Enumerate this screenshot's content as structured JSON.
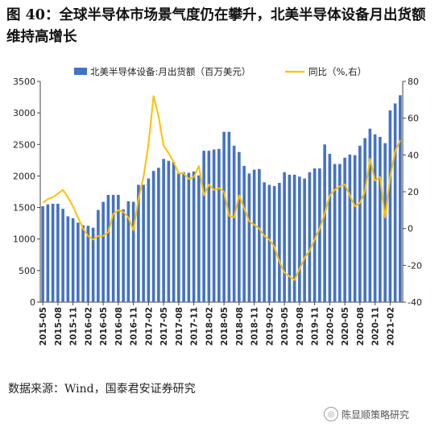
{
  "figure": {
    "title": "图 40：全球半导体市场景气度仍在攀升，北美半导体设备月出货额维持高增长",
    "source": "数据来源：Wind，国泰君安证券研究",
    "watermark": "陈显顺策略研究"
  },
  "colors": {
    "bar": "#4472C4",
    "line": "#FFC000"
  },
  "chart_data": {
    "type": "bar+line",
    "ylim_left": [
      0,
      3500
    ],
    "ylim_right": [
      -40,
      80
    ],
    "yticks_left": [
      0,
      500,
      1000,
      1500,
      2000,
      2500,
      3000,
      3500
    ],
    "yticks_right": [
      -40,
      -20,
      0,
      20,
      40,
      60,
      80
    ],
    "grid": false,
    "legend_position": "top",
    "x_tick_labels": [
      "2015-05",
      "2015-08",
      "2015-11",
      "2016-02",
      "2016-05",
      "2016-08",
      "2016-11",
      "2017-02",
      "2017-05",
      "2017-08",
      "2017-11",
      "2018-02",
      "2018-05",
      "2018-08",
      "2018-11",
      "2019-02",
      "2019-05",
      "2019-08",
      "2019-11",
      "2020-02",
      "2020-05",
      "2020-08",
      "2020-11",
      "2021-02"
    ],
    "categories": [
      "2015-05",
      "2015-06",
      "2015-07",
      "2015-08",
      "2015-09",
      "2015-10",
      "2015-11",
      "2015-12",
      "2016-01",
      "2016-02",
      "2016-03",
      "2016-04",
      "2016-05",
      "2016-06",
      "2016-07",
      "2016-08",
      "2016-09",
      "2016-10",
      "2016-11",
      "2016-12",
      "2017-01",
      "2017-02",
      "2017-03",
      "2017-04",
      "2017-05",
      "2017-06",
      "2017-07",
      "2017-08",
      "2017-09",
      "2017-10",
      "2017-11",
      "2017-12",
      "2018-01",
      "2018-02",
      "2018-03",
      "2018-04",
      "2018-05",
      "2018-06",
      "2018-07",
      "2018-08",
      "2018-09",
      "2018-10",
      "2018-11",
      "2018-12",
      "2019-01",
      "2019-02",
      "2019-03",
      "2019-04",
      "2019-05",
      "2019-06",
      "2019-07",
      "2019-08",
      "2019-09",
      "2019-10",
      "2019-11",
      "2019-12",
      "2020-01",
      "2020-02",
      "2020-03",
      "2020-04",
      "2020-05",
      "2020-06",
      "2020-07",
      "2020-08",
      "2020-09",
      "2020-10",
      "2020-11",
      "2020-12",
      "2021-01",
      "2021-02",
      "2021-03",
      "2021-04"
    ],
    "series": [
      {
        "name": "北美半导体设备:月出货额（百万美元）",
        "type": "bar",
        "axis": "left",
        "values": [
          1520,
          1550,
          1560,
          1560,
          1480,
          1360,
          1330,
          1260,
          1220,
          1210,
          1180,
          1460,
          1590,
          1700,
          1700,
          1700,
          1470,
          1600,
          1590,
          1860,
          1860,
          1960,
          2080,
          2130,
          2270,
          2240,
          2220,
          2040,
          2060,
          2050,
          2070,
          2010,
          2400,
          2400,
          2420,
          2430,
          2700,
          2700,
          2480,
          2380,
          2160,
          2040,
          2100,
          2110,
          1900,
          1860,
          1840,
          1890,
          2060,
          2020,
          2020,
          1990,
          1960,
          2060,
          2120,
          2120,
          2500,
          2350,
          2190,
          2190,
          2290,
          2340,
          2330,
          2480,
          2600,
          2750,
          2660,
          2620,
          2520,
          3040,
          3150,
          3280
        ]
      },
      {
        "name": "同比（%,右）",
        "type": "line",
        "axis": "right",
        "values": [
          14,
          16,
          17,
          19,
          21,
          17,
          12,
          6,
          0,
          -4,
          -6,
          -4,
          -4,
          -2,
          8,
          10,
          9,
          6,
          -1,
          16,
          28,
          46,
          72,
          61,
          45,
          41,
          36,
          30,
          30,
          27,
          28,
          34,
          18,
          24,
          21,
          22,
          20,
          7,
          6,
          18,
          11,
          4,
          2,
          0,
          -4,
          -6,
          -10,
          -18,
          -24,
          -26,
          -28,
          -22,
          -16,
          -12,
          -6,
          0,
          8,
          18,
          21,
          23,
          24,
          18,
          12,
          14,
          20,
          38,
          26,
          28,
          6,
          28,
          42,
          48
        ]
      }
    ]
  }
}
